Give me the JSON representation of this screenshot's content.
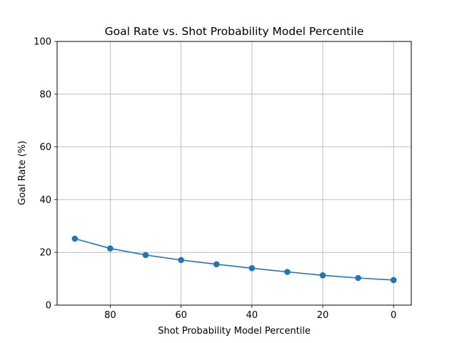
{
  "chart_data": {
    "type": "line",
    "title": "Goal Rate vs. Shot Probability Model Percentile",
    "xlabel": "Shot Probability Model Percentile",
    "ylabel": "Goal Rate (%)",
    "x_inverted": true,
    "xlim": [
      95,
      -5
    ],
    "ylim": [
      0,
      100
    ],
    "x_ticks": [
      80,
      60,
      40,
      20,
      0
    ],
    "y_ticks": [
      0,
      20,
      40,
      60,
      80,
      100
    ],
    "grid": true,
    "legend": "none",
    "series": [
      {
        "color": "#1f77b4",
        "marker": "circle",
        "x": [
          90,
          80,
          70,
          60,
          50,
          40,
          30,
          20,
          10,
          0
        ],
        "values": [
          25.2,
          21.5,
          19.0,
          17.1,
          15.5,
          14.0,
          12.6,
          11.3,
          10.3,
          9.5
        ]
      }
    ]
  }
}
